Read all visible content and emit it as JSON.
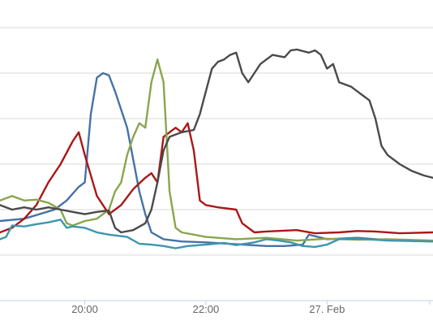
{
  "chart_data": {
    "type": "line",
    "title": "",
    "xlabel": "",
    "ylabel": "",
    "grid": true,
    "x_tick_labels": [
      "20:00",
      "22:00",
      "27. Feb"
    ],
    "x_tick_hours": [
      20,
      22,
      24
    ],
    "xlim_hours": [
      18.6,
      25.75
    ],
    "ylim": [
      0,
      65
    ],
    "series": [
      {
        "color": "#4572a7",
        "points": [
          [
            18.6,
            17.5
          ],
          [
            19.0,
            18
          ],
          [
            19.5,
            20
          ],
          [
            19.7,
            22
          ],
          [
            19.9,
            25
          ],
          [
            20.0,
            26
          ],
          [
            20.1,
            41
          ],
          [
            20.2,
            49
          ],
          [
            20.3,
            50
          ],
          [
            20.4,
            49.5
          ],
          [
            20.5,
            46
          ],
          [
            20.7,
            38
          ],
          [
            20.8,
            31
          ],
          [
            20.9,
            24
          ],
          [
            21.0,
            19
          ],
          [
            21.1,
            15
          ],
          [
            21.3,
            13.5
          ],
          [
            21.6,
            13
          ],
          [
            22.0,
            12.8
          ],
          [
            22.5,
            12.4
          ],
          [
            23.0,
            12
          ],
          [
            23.3,
            12
          ],
          [
            23.6,
            12.3
          ],
          [
            23.7,
            14.5
          ],
          [
            24.0,
            13.5
          ],
          [
            24.5,
            13.8
          ],
          [
            25.0,
            13.3
          ],
          [
            25.75,
            13
          ]
        ]
      },
      {
        "color": "#aa1717",
        "points": [
          [
            18.6,
            15
          ],
          [
            18.8,
            16
          ],
          [
            19.0,
            18
          ],
          [
            19.2,
            21
          ],
          [
            19.4,
            26
          ],
          [
            19.6,
            30
          ],
          [
            19.8,
            35
          ],
          [
            19.9,
            37
          ],
          [
            20.0,
            32
          ],
          [
            20.2,
            23
          ],
          [
            20.4,
            19
          ],
          [
            20.6,
            21
          ],
          [
            20.8,
            24.5
          ],
          [
            21.0,
            27
          ],
          [
            21.1,
            28
          ],
          [
            21.2,
            26
          ],
          [
            21.3,
            36
          ],
          [
            21.5,
            38
          ],
          [
            21.6,
            37
          ],
          [
            21.7,
            39
          ],
          [
            21.8,
            33
          ],
          [
            21.9,
            22
          ],
          [
            22.0,
            21
          ],
          [
            22.2,
            20.5
          ],
          [
            22.5,
            20
          ],
          [
            22.6,
            17
          ],
          [
            22.8,
            15
          ],
          [
            23.0,
            15.2
          ],
          [
            23.5,
            15.5
          ],
          [
            23.8,
            14.8
          ],
          [
            24.2,
            15
          ],
          [
            24.5,
            15.3
          ],
          [
            24.8,
            15.2
          ],
          [
            25.2,
            14.8
          ],
          [
            25.75,
            15
          ]
        ]
      },
      {
        "color": "#89a54e",
        "points": [
          [
            18.6,
            22
          ],
          [
            18.8,
            23
          ],
          [
            19.0,
            22
          ],
          [
            19.2,
            22.2
          ],
          [
            19.4,
            21.5
          ],
          [
            19.6,
            20
          ],
          [
            19.7,
            17
          ],
          [
            19.8,
            16.5
          ],
          [
            20.0,
            17.5
          ],
          [
            20.2,
            18
          ],
          [
            20.4,
            20
          ],
          [
            20.5,
            24
          ],
          [
            20.6,
            26
          ],
          [
            20.7,
            32
          ],
          [
            20.8,
            36
          ],
          [
            20.9,
            39
          ],
          [
            21.0,
            38
          ],
          [
            21.1,
            48
          ],
          [
            21.2,
            53
          ],
          [
            21.3,
            48
          ],
          [
            21.4,
            24
          ],
          [
            21.5,
            16
          ],
          [
            21.6,
            15
          ],
          [
            22.0,
            14
          ],
          [
            22.5,
            13.5
          ],
          [
            23.0,
            13.8
          ],
          [
            23.5,
            13.2
          ],
          [
            24.0,
            13.6
          ],
          [
            24.5,
            13.4
          ],
          [
            25.0,
            13.5
          ],
          [
            25.75,
            13.2
          ]
        ]
      },
      {
        "color": "#3d96ae",
        "points": [
          [
            18.6,
            13.5
          ],
          [
            18.7,
            14
          ],
          [
            18.8,
            16.5
          ],
          [
            19.0,
            16.3
          ],
          [
            19.2,
            16.8
          ],
          [
            19.4,
            17.2
          ],
          [
            19.6,
            17.8
          ],
          [
            19.7,
            16
          ],
          [
            19.8,
            16.3
          ],
          [
            20.0,
            16
          ],
          [
            20.2,
            15
          ],
          [
            20.4,
            14.5
          ],
          [
            20.7,
            14
          ],
          [
            20.9,
            12.5
          ],
          [
            21.1,
            12.3
          ],
          [
            21.3,
            12
          ],
          [
            21.5,
            11.5
          ],
          [
            21.7,
            12
          ],
          [
            22.0,
            12.3
          ],
          [
            22.3,
            12.7
          ],
          [
            22.5,
            12.2
          ],
          [
            22.8,
            12.8
          ],
          [
            23.0,
            13.5
          ],
          [
            23.2,
            13.2
          ],
          [
            23.4,
            12.8
          ],
          [
            23.6,
            12
          ],
          [
            23.8,
            11.8
          ],
          [
            24.0,
            12.3
          ],
          [
            24.2,
            13.5
          ],
          [
            24.5,
            13.6
          ],
          [
            25.0,
            13.2
          ],
          [
            25.75,
            13
          ]
        ]
      },
      {
        "color": "#4a4a4a",
        "points": [
          [
            18.6,
            21
          ],
          [
            18.8,
            20
          ],
          [
            19.0,
            20.5
          ],
          [
            19.2,
            20
          ],
          [
            19.4,
            20.5
          ],
          [
            19.6,
            20
          ],
          [
            19.8,
            19.5
          ],
          [
            20.0,
            19
          ],
          [
            20.2,
            19.5
          ],
          [
            20.4,
            19.8
          ],
          [
            20.5,
            16
          ],
          [
            20.6,
            15
          ],
          [
            20.8,
            15.5
          ],
          [
            21.0,
            17
          ],
          [
            21.1,
            20
          ],
          [
            21.2,
            26
          ],
          [
            21.3,
            33
          ],
          [
            21.4,
            36
          ],
          [
            21.6,
            37
          ],
          [
            21.8,
            37.5
          ],
          [
            21.9,
            41
          ],
          [
            22.0,
            46
          ],
          [
            22.1,
            51
          ],
          [
            22.2,
            52.5
          ],
          [
            22.3,
            53
          ],
          [
            22.4,
            54
          ],
          [
            22.5,
            54.5
          ],
          [
            22.6,
            50
          ],
          [
            22.7,
            48
          ],
          [
            22.8,
            50
          ],
          [
            22.9,
            52
          ],
          [
            23.0,
            53
          ],
          [
            23.1,
            54
          ],
          [
            23.3,
            53.5
          ],
          [
            23.4,
            55
          ],
          [
            23.5,
            55.2
          ],
          [
            23.7,
            54.5
          ],
          [
            23.8,
            55
          ],
          [
            23.9,
            54
          ],
          [
            24.0,
            51
          ],
          [
            24.1,
            52
          ],
          [
            24.2,
            48
          ],
          [
            24.4,
            47
          ],
          [
            24.5,
            46
          ],
          [
            24.6,
            45
          ],
          [
            24.7,
            44
          ],
          [
            24.8,
            40
          ],
          [
            24.9,
            34
          ],
          [
            25.0,
            32
          ],
          [
            25.2,
            30
          ],
          [
            25.4,
            28.5
          ],
          [
            25.6,
            27.5
          ],
          [
            25.75,
            27
          ]
        ]
      }
    ]
  }
}
